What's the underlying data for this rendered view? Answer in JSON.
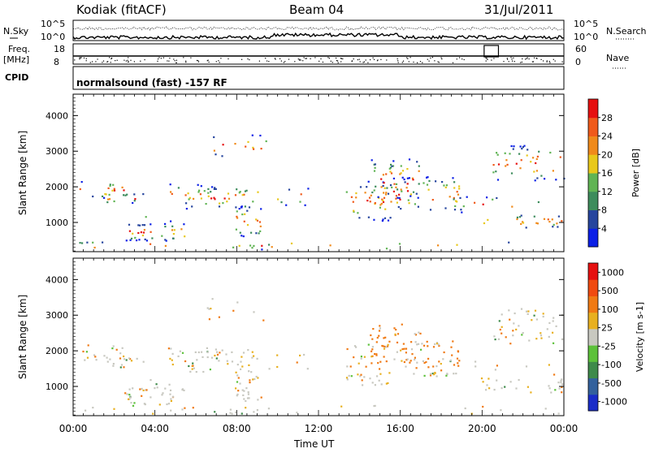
{
  "header": {
    "station": "Kodiak (fitACF)",
    "beam": "Beam 04",
    "date": "31/Jul/2011"
  },
  "panels": {
    "left_noise_sky": "N.Sky",
    "left_freq": "Freq.",
    "left_freq_unit": "[MHz]",
    "left_cpid": "CPID",
    "right_noise_search": "N.Search",
    "right_nave": "Nave",
    "noise_ticks_top": "10^5",
    "noise_ticks_bottom": "10^0",
    "freq_ticks_top": "18",
    "freq_ticks_bottom": "8",
    "nave_ticks_top": "60",
    "nave_ticks_bottom": "0",
    "cpid_text": "normalsound (fast) -157 RF"
  },
  "chart_data": [
    {
      "type": "heatmap",
      "title": "",
      "ylabel": "Slant Range [km]",
      "xlabel": "Time UT",
      "ylim": [
        180,
        4600
      ],
      "yticks": [
        "1000",
        "2000",
        "3000",
        "4000"
      ],
      "xticks": [
        "00:00",
        "04:00",
        "08:00",
        "12:00",
        "16:00",
        "20:00",
        "00:00"
      ],
      "colorbar": {
        "label": "Power [dB]",
        "ticks": [
          "4",
          "8",
          "12",
          "16",
          "20",
          "24",
          "28"
        ],
        "colors": [
          "#0b1fe6",
          "#26459e",
          "#3d8c5c",
          "#60b454",
          "#e8c81a",
          "#f08a1a",
          "#f05a1a",
          "#e61010"
        ]
      }
    },
    {
      "type": "heatmap",
      "title": "",
      "ylabel": "Slant Range [km]",
      "xlabel": "Time UT",
      "ylim": [
        180,
        4600
      ],
      "yticks": [
        "1000",
        "2000",
        "3000",
        "4000"
      ],
      "xticks": [
        "00:00",
        "04:00",
        "08:00",
        "12:00",
        "16:00",
        "20:00",
        "00:00"
      ],
      "colorbar": {
        "label": "Velocity [m s-1]",
        "ticks": [
          "1000",
          "500",
          "100",
          "25",
          "-25",
          "-100",
          "-500",
          "-1000"
        ],
        "colors": [
          "#1a2dc8",
          "#33619c",
          "#3e8a4a",
          "#5cc13a",
          "#c8c8c0",
          "#e8b020",
          "#f07a14",
          "#f04a10",
          "#e61010"
        ]
      }
    }
  ]
}
